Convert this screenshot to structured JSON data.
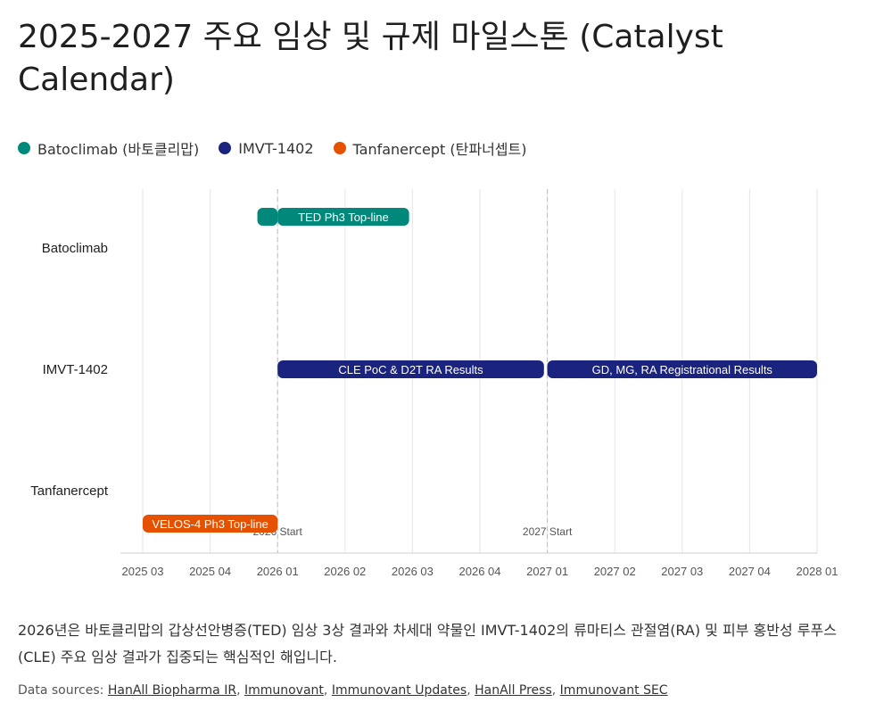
{
  "title": "2025-2027 주요 임상 및 규제 마일스톤 (Catalyst Calendar)",
  "legend": [
    {
      "label": "Batoclimab (바토클리맙)",
      "color": "#00897b"
    },
    {
      "label": "IMVT-1402",
      "color": "#1a237e"
    },
    {
      "label": "Tanfanercept (탄파너셉트)",
      "color": "#e65100"
    }
  ],
  "summary": "2026년은 바토클리맙의 갑상선안병증(TED) 임상 3상 결과와 차세대 약물인 IMVT-1402의 류마티스 관절염(RA) 및 피부 홍반성 루푸스(CLE) 주요 임상 결과가 집중되는 핵심적인 해입니다.",
  "sources": {
    "prefix": "Data sources: ",
    "links": [
      "HanAll Biopharma IR",
      "Immunovant",
      "Immunovant Updates",
      "HanAll Press",
      "Immunovant SEC"
    ]
  },
  "chart_data": {
    "type": "gantt",
    "rows": [
      "Batoclimab",
      "IMVT-1402",
      "Tanfanercept"
    ],
    "x_ticks": [
      "2025 03",
      "2025 04",
      "2026 01",
      "2026 02",
      "2026 03",
      "2026 04",
      "2027 01",
      "2027 02",
      "2027 03",
      "2027 04",
      "2028 01"
    ],
    "markers": [
      {
        "label": "2026 Start",
        "tick": 2
      },
      {
        "label": "2027 Start",
        "tick": 6
      }
    ],
    "bars": [
      {
        "row": "Batoclimab",
        "start": 1.7,
        "end": 2.0,
        "label": "",
        "color": "#00897b"
      },
      {
        "row": "Batoclimab",
        "start": 2.0,
        "end": 3.95,
        "label": "TED Ph3 Top-line",
        "color": "#00897b"
      },
      {
        "row": "IMVT-1402",
        "start": 2.0,
        "end": 5.95,
        "label": "CLE PoC & D2T RA Results",
        "color": "#1a237e"
      },
      {
        "row": "IMVT-1402",
        "start": 6.0,
        "end": 10.0,
        "label": "GD, MG, RA Registrational Results",
        "color": "#1a237e"
      },
      {
        "row": "Tanfanercept",
        "start": 0.0,
        "end": 2.0,
        "label": "VELOS-4 Ph3 Top-line",
        "color": "#e65100"
      }
    ],
    "grid": true,
    "legend_position": "top-left"
  }
}
